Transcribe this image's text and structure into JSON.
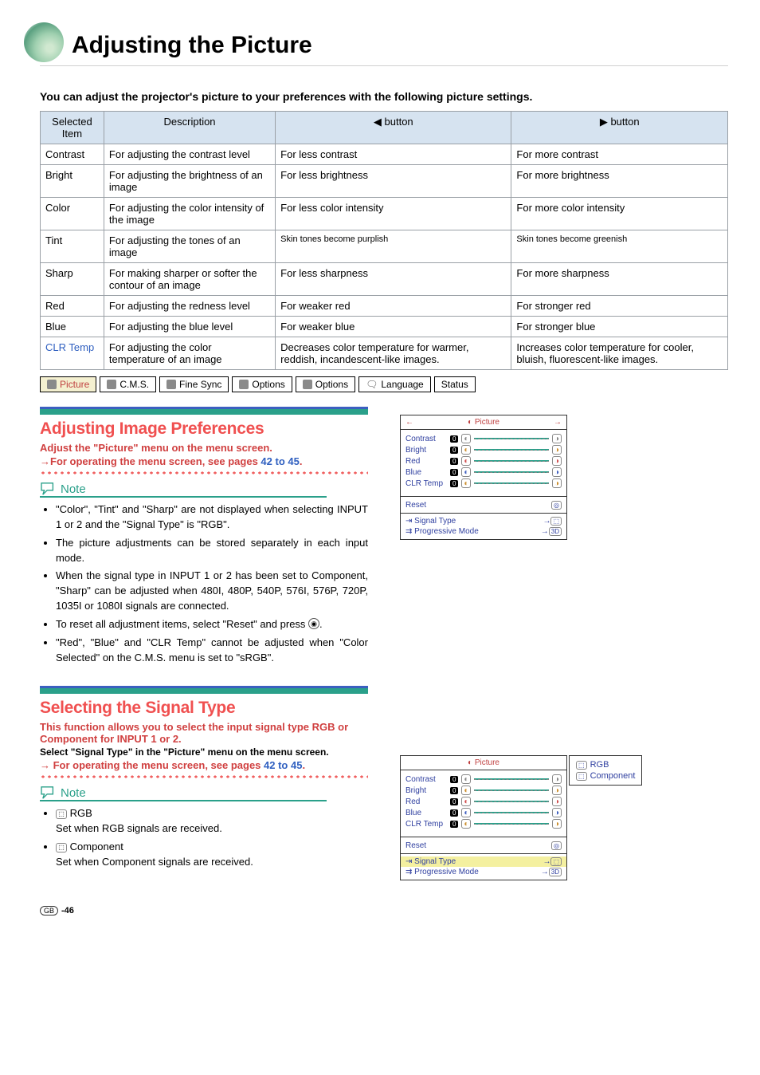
{
  "page": {
    "title": "Adjusting the Picture",
    "intro": "You can adjust the projector's picture to your preferences with the following picture settings.",
    "page_number": "-46",
    "region_badge": "GB"
  },
  "table": {
    "headers": [
      "Selected Item",
      "Description",
      "◀ button",
      "▶ button"
    ],
    "rows": [
      {
        "item": "Contrast",
        "desc": "For adjusting the contrast level",
        "l": "For less contrast",
        "r": "For more contrast"
      },
      {
        "item": "Bright",
        "desc": "For adjusting the brightness of an image",
        "l": "For less brightness",
        "r": "For more brightness"
      },
      {
        "item": "Color",
        "desc": "For adjusting the color intensity of the image",
        "l": "For less color intensity",
        "r": "For more color intensity"
      },
      {
        "item": "Tint",
        "desc": "For adjusting the tones of an image",
        "l": "Skin tones become purplish",
        "r": "Skin tones become greenish"
      },
      {
        "item": "Sharp",
        "desc": "For making sharper or softer the contour of an image",
        "l": "For less sharpness",
        "r": "For more sharpness"
      },
      {
        "item": "Red",
        "desc": "For adjusting the redness level",
        "l": "For weaker red",
        "r": "For stronger red"
      },
      {
        "item": "Blue",
        "desc": "For adjusting the blue level",
        "l": "For weaker blue",
        "r": "For stronger blue"
      },
      {
        "item": "CLR Temp",
        "desc": "For adjusting the color temperature of an image",
        "l": "Decreases color temperature for warmer, reddish, incandescent-like images.",
        "r": "Increases color temperature for cooler, bluish, fluorescent-like images.",
        "link": true
      }
    ]
  },
  "menubar": {
    "items": [
      "Picture",
      "C.M.S.",
      "Fine Sync",
      "Options",
      "Options",
      "Language",
      "Status"
    ]
  },
  "section1": {
    "heading": "Adjusting Image Preferences",
    "line1": "Adjust the \"Picture\" menu on the menu screen.",
    "line2_pre": "→For operating the menu screen, see pages ",
    "line2_link": "42 to 45",
    "line2_post": ".",
    "note_label": "Note",
    "notes": [
      "\"Color\", \"Tint\" and \"Sharp\" are not displayed when selecting INPUT 1 or 2 and the \"Signal Type\" is \"RGB\".",
      "The picture adjustments can be stored separately in each input mode.",
      "When the signal type in INPUT 1 or 2 has been set to Component, \"Sharp\" can be adjusted when 480I, 480P, 540P, 576I, 576P, 720P, 1035I or 1080I signals are connected.",
      "To reset all adjustment items, select \"Reset\" and press ⊙.",
      "\"Red\", \"Blue\" and \"CLR Temp\" cannot be adjusted when \"Color Selected\" on the C.M.S. menu is set to \"sRGB\"."
    ]
  },
  "section2": {
    "heading": "Selecting the Signal Type",
    "line1": "This function allows you to select the input signal type RGB or Component for INPUT 1 or 2.",
    "line2": "Select \"Signal Type\" in the \"Picture\" menu on the menu screen.",
    "line3_pre": "→ For operating the menu screen, see pages ",
    "line3_link": "42 to 45",
    "line3_post": ".",
    "note_label": "Note",
    "notes_rgb": "RGB",
    "notes_rgb_sub": "Set when RGB signals are received.",
    "notes_comp": "Component",
    "notes_comp_sub": "Set when Component signals are received."
  },
  "osd": {
    "title": "Picture",
    "rows": [
      "Contrast",
      "Bright",
      "Red",
      "Blue",
      "CLR Temp"
    ],
    "value": "0",
    "reset": "Reset",
    "signal_type": "Signal Type",
    "progressive": "Progressive Mode",
    "prog_badge": "3D"
  },
  "popup": {
    "rgb": "RGB",
    "component": "Component"
  },
  "colors": {
    "accent_red": "#f05050",
    "accent_teal": "#2aa08a",
    "accent_blue": "#3b5fc0",
    "header_bg": "#d6e3f0",
    "link": "#3060c0"
  }
}
